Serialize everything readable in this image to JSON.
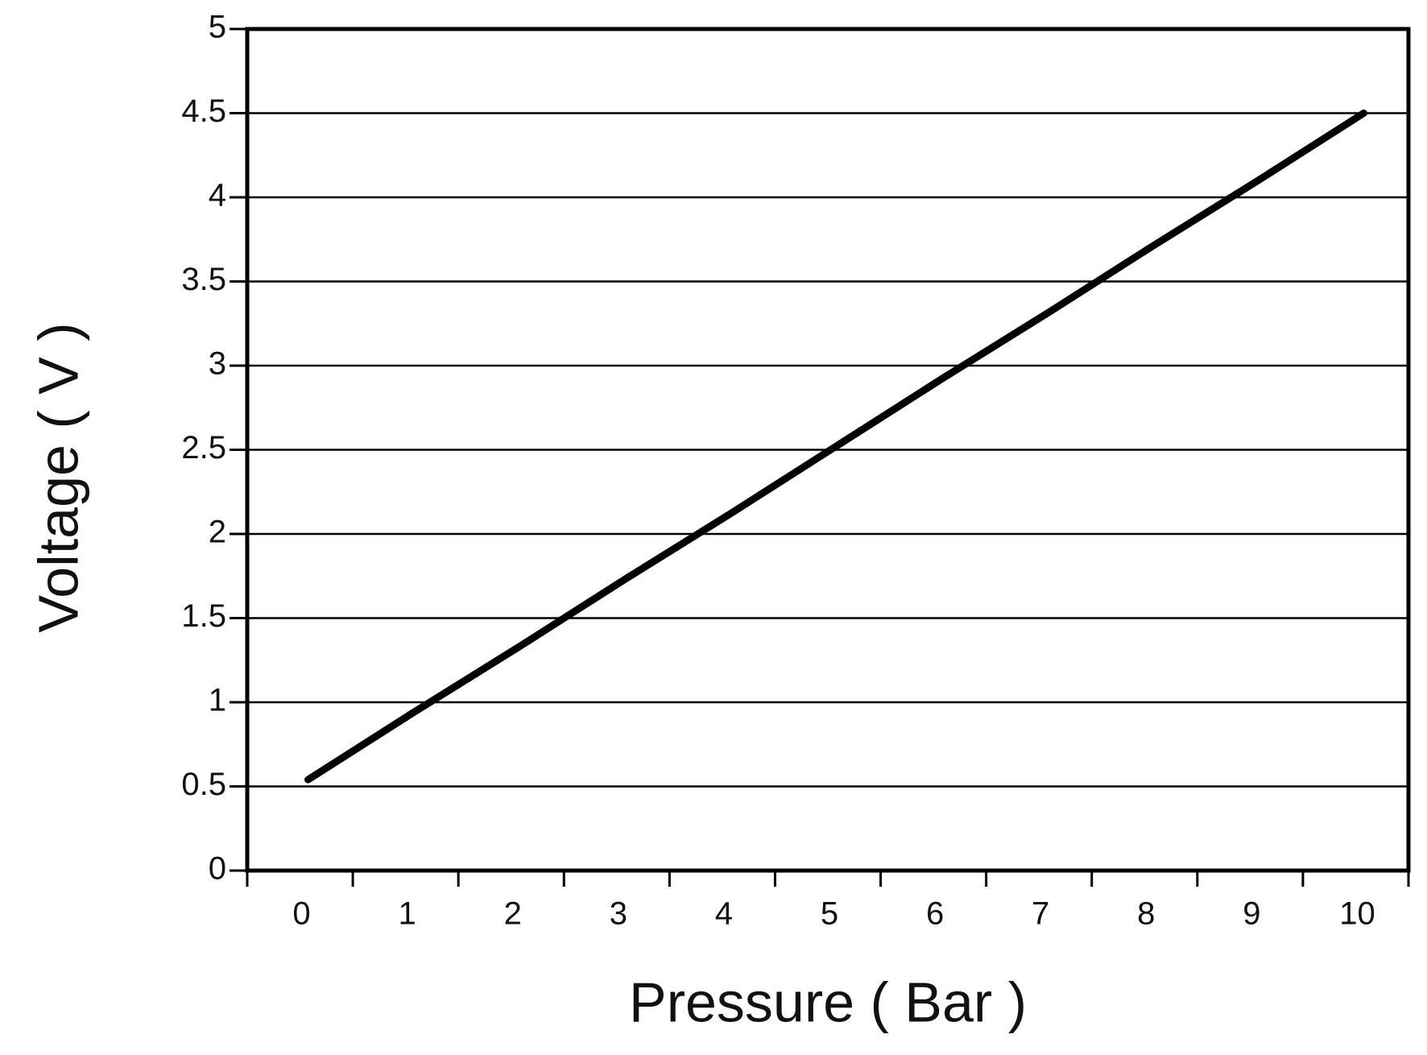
{
  "chart_data": {
    "type": "line",
    "x_label": "Pressure ( Bar )",
    "y_label": "Voltage ( V )",
    "categories": [
      "0",
      "1",
      "2",
      "3",
      "4",
      "5",
      "6",
      "7",
      "8",
      "9",
      "10"
    ],
    "series": [
      {
        "name": "Voltage",
        "color": "#000000",
        "values": [
          0.54,
          0.94,
          1.33,
          1.73,
          2.12,
          2.52,
          2.92,
          3.31,
          3.71,
          4.1,
          4.5
        ]
      }
    ],
    "ylim": [
      0,
      5
    ],
    "yticks": [
      0,
      0.5,
      1,
      1.5,
      2,
      2.5,
      3,
      3.5,
      4,
      4.5,
      5
    ],
    "grid": true
  }
}
